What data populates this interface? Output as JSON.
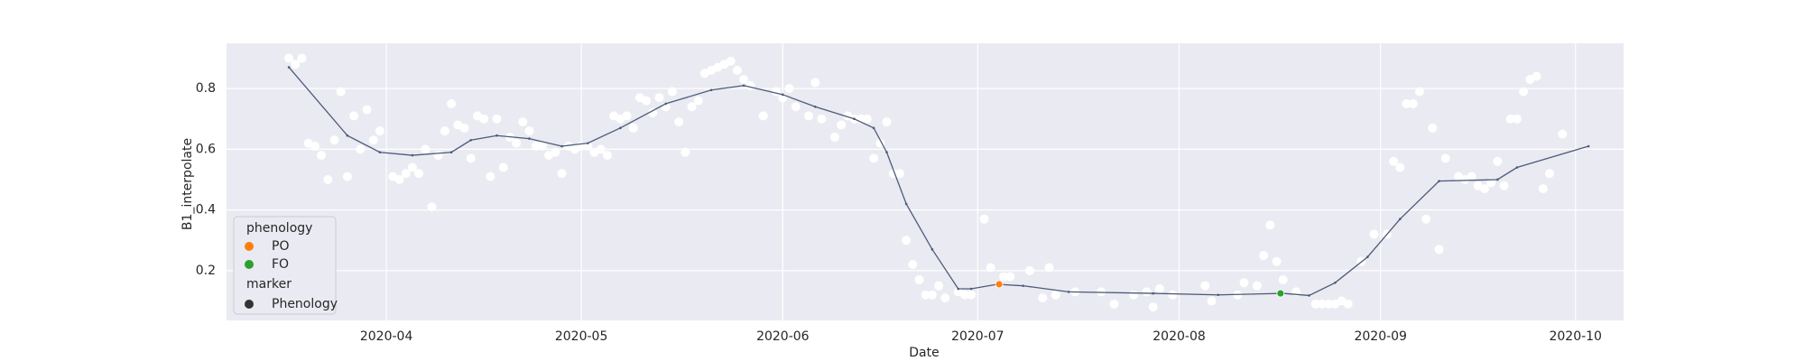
{
  "chart_data": {
    "type": "scatter",
    "x_label": "Date",
    "y_label": "B1_interpolate",
    "xlim": [
      6.4,
      221.4
    ],
    "xticks": [
      {
        "value": 31,
        "label": "2020-04"
      },
      {
        "value": 61,
        "label": "2020-05"
      },
      {
        "value": 92,
        "label": "2020-06"
      },
      {
        "value": 122,
        "label": "2020-07"
      },
      {
        "value": 153,
        "label": "2020-08"
      },
      {
        "value": 184,
        "label": "2020-09"
      },
      {
        "value": 214,
        "label": "2020-10"
      }
    ],
    "ylim": [
      0.036,
      0.949
    ],
    "yticks": [
      0.2,
      0.4,
      0.6,
      0.8
    ],
    "grid": true,
    "background": "#eaeaf2",
    "legend_position": "lower left",
    "legend_title": "phenology",
    "legend_marker_title": "marker",
    "legend_marker_label": "Phenology",
    "legend_marker_color": "#333333",
    "series": [
      {
        "style": "points",
        "color": "#ffffff",
        "x": [
          16,
          17,
          18,
          19,
          20,
          21,
          22,
          23,
          24,
          25,
          26,
          27,
          28,
          29,
          30,
          32,
          33,
          34,
          35,
          36,
          37,
          38,
          39,
          40,
          41,
          42,
          43,
          44,
          45,
          46,
          47,
          48,
          49,
          50,
          51,
          52,
          53,
          54,
          55,
          56,
          57,
          58,
          59,
          60,
          61,
          62,
          63,
          64,
          65,
          66,
          67,
          68,
          69,
          70,
          71,
          72,
          73,
          74,
          75,
          76,
          77,
          78,
          79,
          80,
          81,
          82,
          83,
          84,
          85,
          86,
          87,
          89,
          91,
          92,
          93,
          94,
          96,
          97,
          98,
          100,
          101,
          102,
          103,
          104,
          105,
          106,
          107,
          108,
          109,
          110,
          111,
          112,
          113,
          114,
          115,
          116,
          117,
          119,
          120,
          121,
          123,
          124,
          126,
          127,
          130,
          132,
          133,
          134,
          137,
          141,
          143,
          146,
          148,
          149,
          150,
          152,
          157,
          158,
          162,
          163,
          165,
          166,
          167,
          168,
          169,
          171,
          174,
          175,
          176,
          177,
          178,
          179,
          181,
          183,
          185,
          186,
          187,
          188,
          189,
          190,
          191,
          192,
          193,
          194,
          196,
          197,
          198,
          199,
          200,
          201,
          202,
          203,
          204,
          205,
          206,
          207,
          208,
          209,
          210,
          212
        ],
        "values": [
          0.9,
          0.88,
          0.9,
          0.62,
          0.61,
          0.58,
          0.5,
          0.63,
          0.79,
          0.51,
          0.71,
          0.6,
          0.73,
          0.63,
          0.66,
          0.51,
          0.5,
          0.52,
          0.54,
          0.52,
          0.6,
          0.41,
          0.58,
          0.66,
          0.75,
          0.68,
          0.67,
          0.57,
          0.71,
          0.7,
          0.51,
          0.7,
          0.54,
          0.64,
          0.62,
          0.69,
          0.66,
          0.61,
          0.61,
          0.58,
          0.59,
          0.52,
          0.61,
          0.6,
          0.61,
          0.61,
          0.59,
          0.6,
          0.58,
          0.71,
          0.7,
          0.71,
          0.67,
          0.77,
          0.76,
          0.72,
          0.77,
          0.74,
          0.79,
          0.69,
          0.59,
          0.74,
          0.76,
          0.85,
          0.86,
          0.87,
          0.88,
          0.89,
          0.86,
          0.83,
          0.81,
          0.71,
          0.79,
          0.77,
          0.8,
          0.74,
          0.71,
          0.82,
          0.7,
          0.64,
          0.68,
          0.71,
          0.7,
          0.7,
          0.7,
          0.57,
          0.62,
          0.69,
          0.52,
          0.52,
          0.3,
          0.22,
          0.17,
          0.12,
          0.12,
          0.15,
          0.11,
          0.13,
          0.12,
          0.12,
          0.37,
          0.21,
          0.18,
          0.18,
          0.2,
          0.11,
          0.21,
          0.12,
          0.13,
          0.13,
          0.09,
          0.12,
          0.13,
          0.08,
          0.14,
          0.12,
          0.15,
          0.1,
          0.12,
          0.16,
          0.15,
          0.25,
          0.35,
          0.23,
          0.17,
          0.13,
          0.09,
          0.09,
          0.09,
          0.09,
          0.1,
          0.09,
          0.23,
          0.32,
          0.32,
          0.56,
          0.54,
          0.75,
          0.75,
          0.79,
          0.37,
          0.67,
          0.27,
          0.57,
          0.51,
          0.5,
          0.51,
          0.48,
          0.47,
          0.49,
          0.56,
          0.48,
          0.7,
          0.7,
          0.79,
          0.83,
          0.84,
          0.47,
          0.52,
          0.65
        ]
      },
      {
        "style": "line",
        "color": "#4c5b78",
        "x": [
          16,
          25,
          30,
          35,
          41,
          44,
          48,
          53,
          58,
          62,
          67,
          74,
          81,
          86,
          92,
          97,
          103,
          106,
          108,
          111,
          115,
          119,
          121,
          125,
          129,
          136,
          149,
          159,
          169,
          173,
          177,
          182,
          187,
          193,
          202,
          205,
          216
        ],
        "values": [
          0.87,
          0.645,
          0.59,
          0.58,
          0.59,
          0.63,
          0.645,
          0.635,
          0.61,
          0.62,
          0.67,
          0.75,
          0.795,
          0.81,
          0.78,
          0.74,
          0.7,
          0.67,
          0.59,
          0.42,
          0.27,
          0.14,
          0.14,
          0.155,
          0.15,
          0.13,
          0.125,
          0.12,
          0.125,
          0.118,
          0.16,
          0.245,
          0.37,
          0.495,
          0.5,
          0.54,
          0.61
        ]
      },
      {
        "style": "points",
        "name": "PO",
        "color": "#ff7f0e",
        "x": [
          125.3
        ],
        "values": [
          0.155
        ]
      },
      {
        "style": "points",
        "name": "FO",
        "color": "#2ca02c",
        "x": [
          168.6
        ],
        "values": [
          0.125
        ]
      }
    ]
  }
}
